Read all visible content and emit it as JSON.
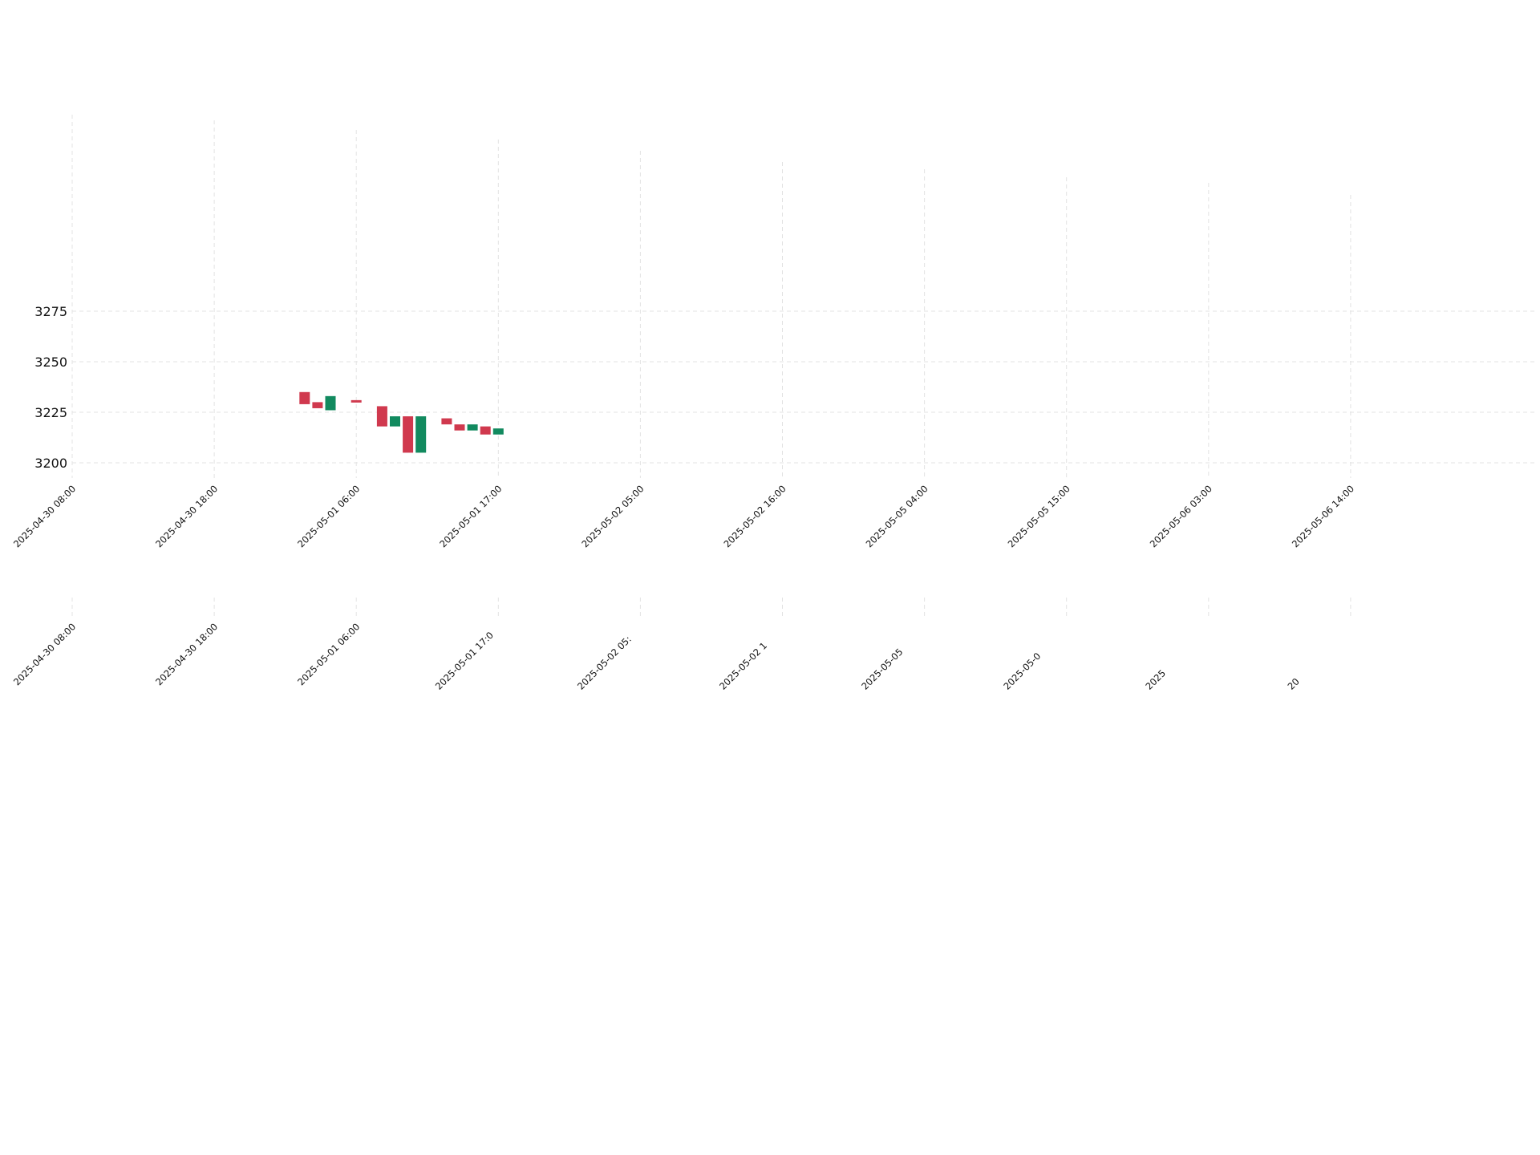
{
  "chart_data": {
    "type": "candlestick",
    "title": "",
    "xlabel": "",
    "ylabel": "",
    "ylim": [
      3190,
      3285
    ],
    "y_ticks": [
      3200,
      3225,
      3250,
      3275
    ],
    "x_tick_labels": [
      "2025-04-30 08:00",
      "2025-04-30 18:00",
      "2025-05-01 06:00",
      "2025-05-01 17:00",
      "2025-05-02 05:00",
      "2025-05-02 16:00",
      "2025-05-05 04:00",
      "2025-05-05 15:00",
      "2025-05-06 03:00",
      "2025-05-06 14:00"
    ],
    "x_tick_labels_lower_panel": [
      "2025-04-30 08:00",
      "2025-04-30 18:00",
      "2025-05-01 06:00",
      "2025-05-01 17:0",
      "2025-05-02 05:",
      "2025-05-02 1",
      "2025-05-05",
      "2025-05-0",
      "2025",
      "20"
    ],
    "grid": true,
    "colors": {
      "up": "#128a5f",
      "down": "#d0394e",
      "grid": "#e3e3e3"
    },
    "candles": [
      {
        "x": 18,
        "open": 3235,
        "close": 3229,
        "dir": "down"
      },
      {
        "x": 19,
        "open": 3230,
        "close": 3227,
        "dir": "down"
      },
      {
        "x": 20,
        "open": 3226,
        "close": 3233,
        "dir": "up"
      },
      {
        "x": 22,
        "open": 3231,
        "close": 3230,
        "dir": "down"
      },
      {
        "x": 24,
        "open": 3228,
        "close": 3218,
        "dir": "down"
      },
      {
        "x": 25,
        "open": 3218,
        "close": 3223,
        "dir": "up"
      },
      {
        "x": 26,
        "open": 3223,
        "close": 3205,
        "dir": "down"
      },
      {
        "x": 27,
        "open": 3205,
        "close": 3223,
        "dir": "up"
      },
      {
        "x": 29,
        "open": 3222,
        "close": 3219,
        "dir": "down"
      },
      {
        "x": 30,
        "open": 3219,
        "close": 3216,
        "dir": "down"
      },
      {
        "x": 31,
        "open": 3216,
        "close": 3219,
        "dir": "up"
      },
      {
        "x": 32,
        "open": 3218,
        "close": 3214,
        "dir": "down"
      },
      {
        "x": 33,
        "open": 3214,
        "close": 3217,
        "dir": "up"
      }
    ]
  }
}
